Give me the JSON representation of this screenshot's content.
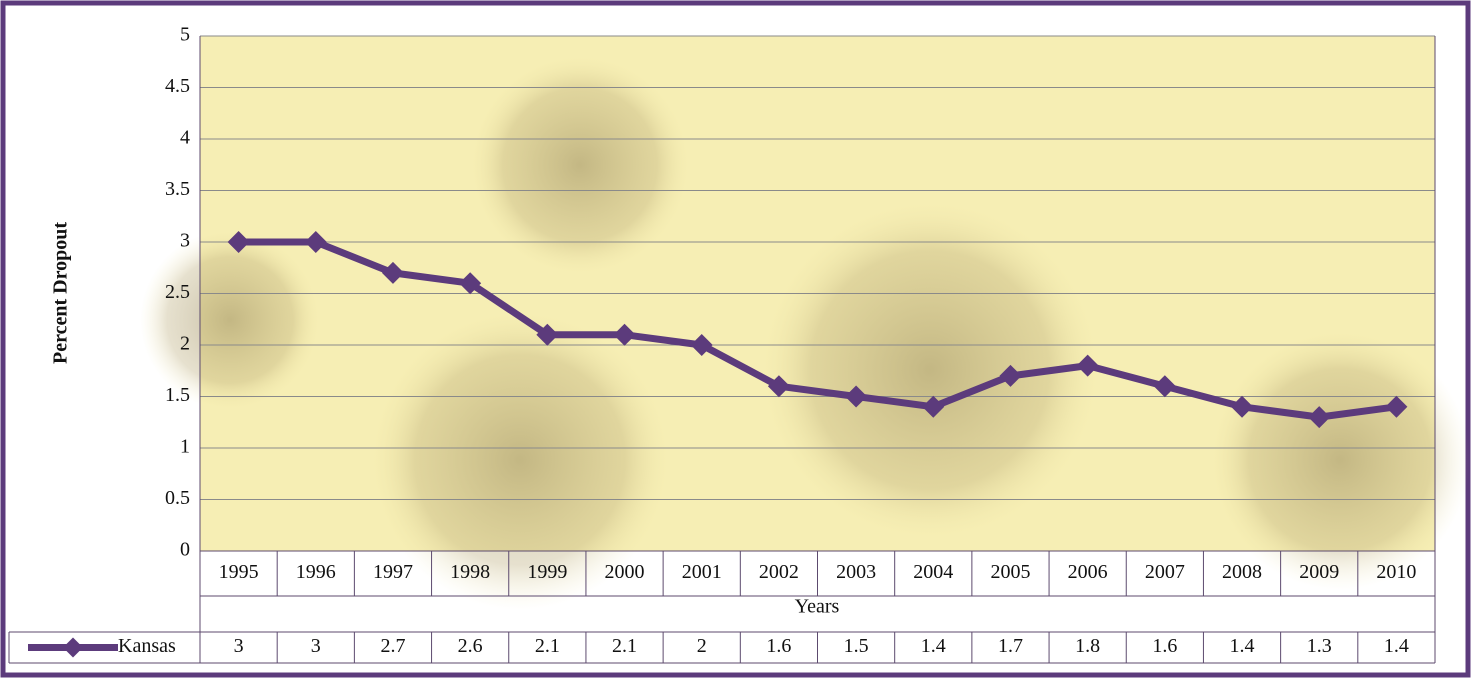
{
  "chart_data": {
    "type": "line",
    "y_label": "Percent Dropout",
    "x_label": "Years",
    "categories": [
      "1995",
      "1996",
      "1997",
      "1998",
      "1999",
      "2000",
      "2001",
      "2002",
      "2003",
      "2004",
      "2005",
      "2006",
      "2007",
      "2008",
      "2009",
      "2010"
    ],
    "series": [
      {
        "name": "Kansas",
        "color": "#5c3b7c",
        "values": [
          3,
          3,
          2.7,
          2.6,
          2.1,
          2.1,
          2,
          1.6,
          1.5,
          1.4,
          1.7,
          1.8,
          1.6,
          1.4,
          1.3,
          1.4
        ]
      }
    ],
    "ylim": [
      0,
      5
    ],
    "yticks": [
      0,
      0.5,
      1,
      1.5,
      2,
      2.5,
      3,
      3.5,
      4,
      4.5,
      5
    ],
    "grid": true
  }
}
